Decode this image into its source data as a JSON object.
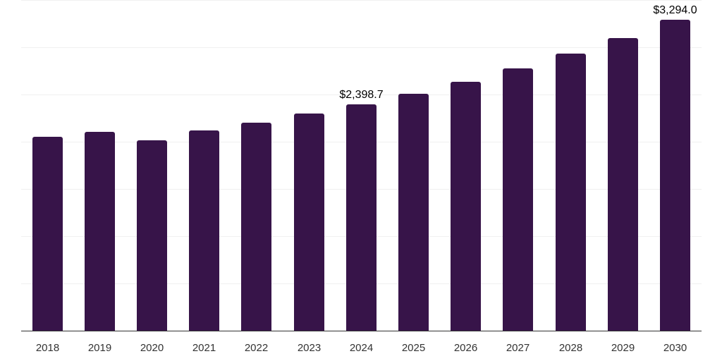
{
  "chart_data": {
    "type": "bar",
    "title": "",
    "xlabel": "",
    "ylabel": "",
    "categories": [
      "2018",
      "2019",
      "2020",
      "2021",
      "2022",
      "2023",
      "2024",
      "2025",
      "2026",
      "2027",
      "2028",
      "2029",
      "2030"
    ],
    "values": [
      2049,
      2108,
      2012,
      2116,
      2198,
      2295,
      2398.7,
      2511,
      2637,
      2779,
      2935,
      3099,
      3294.0
    ],
    "data_labels": [
      {
        "category": "2024",
        "text": "$2,398.7"
      },
      {
        "category": "2030",
        "text": "$3,294.0"
      }
    ],
    "ylim": [
      0,
      3500
    ],
    "grid": true,
    "legend": null,
    "bar_color": "#371449"
  }
}
